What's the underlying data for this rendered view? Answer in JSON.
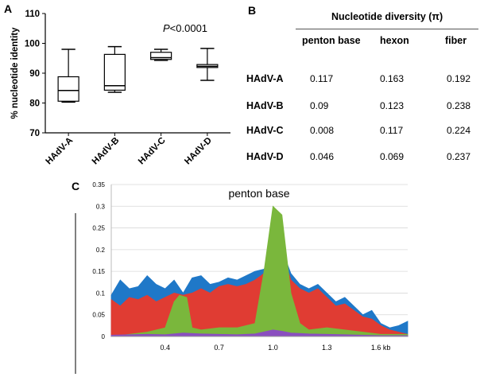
{
  "panels": {
    "a": "A",
    "b": "B",
    "c": "C"
  },
  "panel_b": {
    "title": "Nucleotide diversity (π)",
    "columns": [
      "penton base",
      "hexon",
      "fiber"
    ],
    "rows": [
      {
        "label": "HAdV-A",
        "values": [
          "0.117",
          "0.163",
          "0.192"
        ]
      },
      {
        "label": "HAdV-B",
        "values": [
          "0.09",
          "0.123",
          "0.238"
        ]
      },
      {
        "label": "HAdV-C",
        "values": [
          "0.008",
          "0.117",
          "0.224"
        ]
      },
      {
        "label": "HAdV-D",
        "values": [
          "0.046",
          "0.069",
          "0.237"
        ]
      }
    ]
  },
  "chart_data": [
    {
      "type": "box",
      "ylabel": "% nucleotide identity",
      "ylim": [
        70,
        110
      ],
      "yticks": [
        "70",
        "80",
        "90",
        "100",
        "110"
      ],
      "categories": [
        "HAdV-A",
        "HAdV-B",
        "HAdV-C",
        "HAdV-D"
      ],
      "annotation": "P<0.0001",
      "boxes": [
        {
          "min": 80.3,
          "q1": 80.6,
          "median": 84.2,
          "q3": 88.8,
          "max": 98.0
        },
        {
          "min": 83.6,
          "q1": 84.3,
          "median": 85.8,
          "q3": 96.3,
          "max": 98.9
        },
        {
          "min": 94.3,
          "q1": 94.6,
          "median": 95.2,
          "q3": 97.0,
          "max": 98.0
        },
        {
          "min": 87.6,
          "q1": 91.9,
          "median": 92.3,
          "q3": 92.9,
          "max": 98.3
        }
      ],
      "grid": false
    },
    {
      "type": "area",
      "title": "penton base",
      "ylim": [
        0,
        0.35
      ],
      "yticks": [
        "0",
        "0.05",
        "0.1",
        "0.15",
        "0.2",
        "0.25",
        "0.3",
        "0.35"
      ],
      "xlim": [
        0.1,
        1.75
      ],
      "xticks": [
        "0.4",
        "0.7",
        "1.0",
        "1.3",
        "1.6 kb"
      ],
      "xtick_values": [
        0.4,
        0.7,
        1.0,
        1.3,
        1.6
      ],
      "grid": true,
      "overlap": true,
      "series": [
        {
          "color": "#1f78c8",
          "x": [
            0.1,
            0.15,
            0.2,
            0.25,
            0.3,
            0.35,
            0.4,
            0.45,
            0.5,
            0.55,
            0.6,
            0.65,
            0.7,
            0.75,
            0.8,
            0.85,
            0.9,
            0.95,
            1.0,
            1.05,
            1.1,
            1.15,
            1.2,
            1.25,
            1.3,
            1.35,
            1.4,
            1.45,
            1.5,
            1.55,
            1.6,
            1.65,
            1.7,
            1.75
          ],
          "y": [
            0.095,
            0.13,
            0.11,
            0.115,
            0.14,
            0.12,
            0.11,
            0.13,
            0.1,
            0.135,
            0.14,
            0.12,
            0.125,
            0.135,
            0.13,
            0.14,
            0.15,
            0.155,
            0.19,
            0.2,
            0.145,
            0.12,
            0.11,
            0.12,
            0.1,
            0.08,
            0.09,
            0.07,
            0.05,
            0.06,
            0.03,
            0.02,
            0.025,
            0.035
          ]
        },
        {
          "color": "#e03c33",
          "x": [
            0.1,
            0.15,
            0.2,
            0.25,
            0.3,
            0.35,
            0.4,
            0.45,
            0.5,
            0.55,
            0.6,
            0.65,
            0.7,
            0.75,
            0.8,
            0.85,
            0.9,
            0.95,
            1.0,
            1.05,
            1.1,
            1.15,
            1.2,
            1.25,
            1.3,
            1.35,
            1.4,
            1.45,
            1.5,
            1.55,
            1.6,
            1.65,
            1.7,
            1.75
          ],
          "y": [
            0.085,
            0.07,
            0.09,
            0.085,
            0.095,
            0.08,
            0.09,
            0.1,
            0.095,
            0.1,
            0.11,
            0.1,
            0.115,
            0.12,
            0.115,
            0.12,
            0.13,
            0.145,
            0.2,
            0.195,
            0.13,
            0.11,
            0.1,
            0.11,
            0.09,
            0.07,
            0.075,
            0.06,
            0.045,
            0.04,
            0.025,
            0.015,
            0.01,
            0.005
          ]
        },
        {
          "color": "#7ab73c",
          "x": [
            0.1,
            0.2,
            0.3,
            0.4,
            0.45,
            0.48,
            0.52,
            0.55,
            0.6,
            0.7,
            0.8,
            0.9,
            0.95,
            1.0,
            1.05,
            1.1,
            1.15,
            1.2,
            1.3,
            1.4,
            1.5,
            1.6,
            1.7,
            1.75
          ],
          "y": [
            0.0,
            0.005,
            0.01,
            0.02,
            0.08,
            0.095,
            0.09,
            0.02,
            0.015,
            0.02,
            0.02,
            0.03,
            0.15,
            0.3,
            0.28,
            0.1,
            0.03,
            0.015,
            0.02,
            0.015,
            0.01,
            0.005,
            0.005,
            0.005
          ]
        },
        {
          "color": "#8a4fbf",
          "x": [
            0.1,
            0.2,
            0.3,
            0.4,
            0.5,
            0.6,
            0.7,
            0.8,
            0.9,
            1.0,
            1.05,
            1.1,
            1.2,
            1.3,
            1.4,
            1.5,
            1.6,
            1.7,
            1.75
          ],
          "y": [
            0.003,
            0.004,
            0.005,
            0.004,
            0.008,
            0.006,
            0.005,
            0.004,
            0.006,
            0.015,
            0.012,
            0.008,
            0.006,
            0.005,
            0.004,
            0.003,
            0.002,
            0.002,
            0.002
          ]
        }
      ]
    }
  ]
}
